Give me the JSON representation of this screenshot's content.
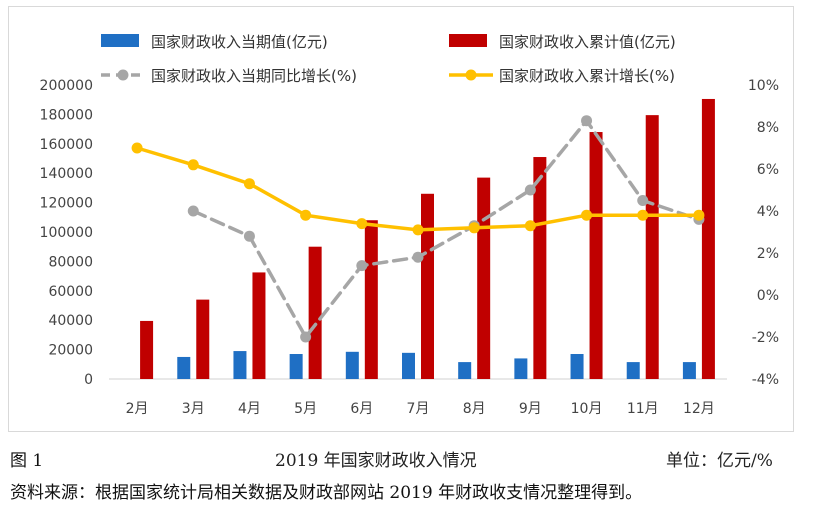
{
  "chart_data": {
    "type": "bar+line",
    "categories": [
      "2月",
      "3月",
      "4月",
      "5月",
      "6月",
      "7月",
      "8月",
      "9月",
      "10月",
      "11月",
      "12月"
    ],
    "legend": [
      {
        "name": "国家财政收入当期值(亿元)",
        "kind": "bar",
        "color": "#1f6fc4"
      },
      {
        "name": "国家财政收入累计值(亿元)",
        "kind": "bar",
        "color": "#c00000"
      },
      {
        "name": "国家财政收入当期同比增长(%)",
        "kind": "dashed-line",
        "color": "#a6a6a6"
      },
      {
        "name": "国家财政收入累计增长(%)",
        "kind": "line",
        "color": "#ffc000"
      }
    ],
    "series": [
      {
        "name": "国家财政收入当期值(亿元)",
        "axis": "left",
        "values": [
          null,
          15000,
          19000,
          17000,
          18500,
          17800,
          11500,
          14000,
          17000,
          11500,
          11500
        ]
      },
      {
        "name": "国家财政收入累计值(亿元)",
        "axis": "left",
        "values": [
          39500,
          54000,
          72500,
          90000,
          108000,
          126000,
          137000,
          151000,
          168000,
          179500,
          190500
        ]
      },
      {
        "name": "国家财政收入当期同比增长(%)",
        "axis": "right",
        "values": [
          null,
          4.0,
          2.8,
          -2.0,
          1.4,
          1.8,
          3.3,
          5.0,
          8.3,
          4.5,
          3.6
        ]
      },
      {
        "name": "国家财政收入累计增长(%)",
        "axis": "right",
        "values": [
          7.0,
          6.2,
          5.3,
          3.8,
          3.4,
          3.1,
          3.2,
          3.3,
          3.8,
          3.8,
          3.8
        ]
      }
    ],
    "y_left": {
      "min": 0,
      "max": 200000,
      "ticks": [
        "0",
        "20000",
        "40000",
        "60000",
        "80000",
        "100000",
        "120000",
        "140000",
        "160000",
        "180000",
        "200000"
      ]
    },
    "y_right": {
      "min": -4,
      "max": 10,
      "ticks": [
        "-4%",
        "-2%",
        "0%",
        "2%",
        "4%",
        "6%",
        "8%",
        "10%"
      ]
    },
    "grid": false,
    "legend_position": "top"
  },
  "caption": {
    "figure_label": "图 1",
    "title": "2019 年国家财政收入情况",
    "unit": "单位：亿元/%",
    "source": "资料来源：根据国家统计局相关数据及财政部网站 2019 年财政收支情况整理得到。"
  }
}
